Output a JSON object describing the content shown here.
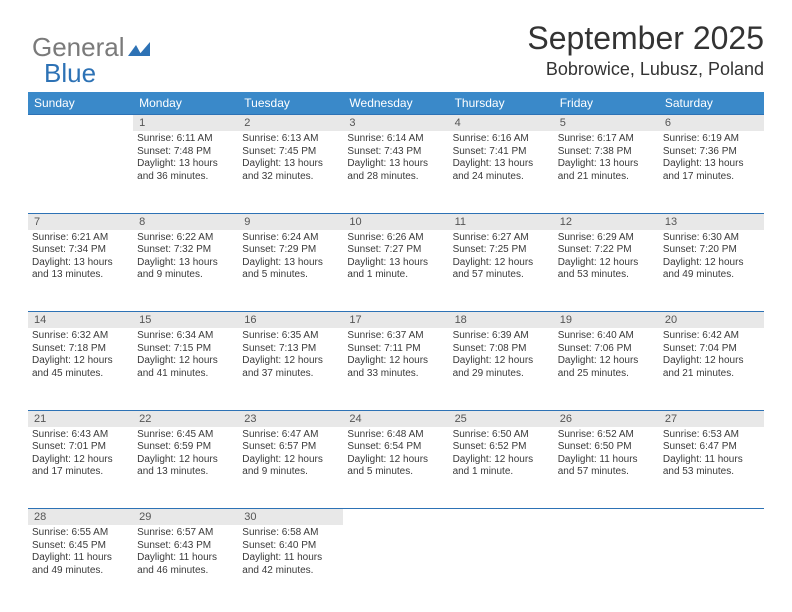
{
  "logo": {
    "part1": "General",
    "part2": "Blue"
  },
  "title": "September 2025",
  "location": "Bobrowice, Lubusz, Poland",
  "colors": {
    "header_bg": "#3a89c9",
    "daynum_bg": "#e8e8e8",
    "rule": "#2d72b5",
    "text": "#3a3a3a",
    "logo_gray": "#7a7a7a",
    "logo_blue": "#2d72b5"
  },
  "weekdays": [
    "Sunday",
    "Monday",
    "Tuesday",
    "Wednesday",
    "Thursday",
    "Friday",
    "Saturday"
  ],
  "weeks": [
    [
      null,
      {
        "d": "1",
        "sr": "Sunrise: 6:11 AM",
        "ss": "Sunset: 7:48 PM",
        "dl": "Daylight: 13 hours and 36 minutes."
      },
      {
        "d": "2",
        "sr": "Sunrise: 6:13 AM",
        "ss": "Sunset: 7:45 PM",
        "dl": "Daylight: 13 hours and 32 minutes."
      },
      {
        "d": "3",
        "sr": "Sunrise: 6:14 AM",
        "ss": "Sunset: 7:43 PM",
        "dl": "Daylight: 13 hours and 28 minutes."
      },
      {
        "d": "4",
        "sr": "Sunrise: 6:16 AM",
        "ss": "Sunset: 7:41 PM",
        "dl": "Daylight: 13 hours and 24 minutes."
      },
      {
        "d": "5",
        "sr": "Sunrise: 6:17 AM",
        "ss": "Sunset: 7:38 PM",
        "dl": "Daylight: 13 hours and 21 minutes."
      },
      {
        "d": "6",
        "sr": "Sunrise: 6:19 AM",
        "ss": "Sunset: 7:36 PM",
        "dl": "Daylight: 13 hours and 17 minutes."
      }
    ],
    [
      {
        "d": "7",
        "sr": "Sunrise: 6:21 AM",
        "ss": "Sunset: 7:34 PM",
        "dl": "Daylight: 13 hours and 13 minutes."
      },
      {
        "d": "8",
        "sr": "Sunrise: 6:22 AM",
        "ss": "Sunset: 7:32 PM",
        "dl": "Daylight: 13 hours and 9 minutes."
      },
      {
        "d": "9",
        "sr": "Sunrise: 6:24 AM",
        "ss": "Sunset: 7:29 PM",
        "dl": "Daylight: 13 hours and 5 minutes."
      },
      {
        "d": "10",
        "sr": "Sunrise: 6:26 AM",
        "ss": "Sunset: 7:27 PM",
        "dl": "Daylight: 13 hours and 1 minute."
      },
      {
        "d": "11",
        "sr": "Sunrise: 6:27 AM",
        "ss": "Sunset: 7:25 PM",
        "dl": "Daylight: 12 hours and 57 minutes."
      },
      {
        "d": "12",
        "sr": "Sunrise: 6:29 AM",
        "ss": "Sunset: 7:22 PM",
        "dl": "Daylight: 12 hours and 53 minutes."
      },
      {
        "d": "13",
        "sr": "Sunrise: 6:30 AM",
        "ss": "Sunset: 7:20 PM",
        "dl": "Daylight: 12 hours and 49 minutes."
      }
    ],
    [
      {
        "d": "14",
        "sr": "Sunrise: 6:32 AM",
        "ss": "Sunset: 7:18 PM",
        "dl": "Daylight: 12 hours and 45 minutes."
      },
      {
        "d": "15",
        "sr": "Sunrise: 6:34 AM",
        "ss": "Sunset: 7:15 PM",
        "dl": "Daylight: 12 hours and 41 minutes."
      },
      {
        "d": "16",
        "sr": "Sunrise: 6:35 AM",
        "ss": "Sunset: 7:13 PM",
        "dl": "Daylight: 12 hours and 37 minutes."
      },
      {
        "d": "17",
        "sr": "Sunrise: 6:37 AM",
        "ss": "Sunset: 7:11 PM",
        "dl": "Daylight: 12 hours and 33 minutes."
      },
      {
        "d": "18",
        "sr": "Sunrise: 6:39 AM",
        "ss": "Sunset: 7:08 PM",
        "dl": "Daylight: 12 hours and 29 minutes."
      },
      {
        "d": "19",
        "sr": "Sunrise: 6:40 AM",
        "ss": "Sunset: 7:06 PM",
        "dl": "Daylight: 12 hours and 25 minutes."
      },
      {
        "d": "20",
        "sr": "Sunrise: 6:42 AM",
        "ss": "Sunset: 7:04 PM",
        "dl": "Daylight: 12 hours and 21 minutes."
      }
    ],
    [
      {
        "d": "21",
        "sr": "Sunrise: 6:43 AM",
        "ss": "Sunset: 7:01 PM",
        "dl": "Daylight: 12 hours and 17 minutes."
      },
      {
        "d": "22",
        "sr": "Sunrise: 6:45 AM",
        "ss": "Sunset: 6:59 PM",
        "dl": "Daylight: 12 hours and 13 minutes."
      },
      {
        "d": "23",
        "sr": "Sunrise: 6:47 AM",
        "ss": "Sunset: 6:57 PM",
        "dl": "Daylight: 12 hours and 9 minutes."
      },
      {
        "d": "24",
        "sr": "Sunrise: 6:48 AM",
        "ss": "Sunset: 6:54 PM",
        "dl": "Daylight: 12 hours and 5 minutes."
      },
      {
        "d": "25",
        "sr": "Sunrise: 6:50 AM",
        "ss": "Sunset: 6:52 PM",
        "dl": "Daylight: 12 hours and 1 minute."
      },
      {
        "d": "26",
        "sr": "Sunrise: 6:52 AM",
        "ss": "Sunset: 6:50 PM",
        "dl": "Daylight: 11 hours and 57 minutes."
      },
      {
        "d": "27",
        "sr": "Sunrise: 6:53 AM",
        "ss": "Sunset: 6:47 PM",
        "dl": "Daylight: 11 hours and 53 minutes."
      }
    ],
    [
      {
        "d": "28",
        "sr": "Sunrise: 6:55 AM",
        "ss": "Sunset: 6:45 PM",
        "dl": "Daylight: 11 hours and 49 minutes."
      },
      {
        "d": "29",
        "sr": "Sunrise: 6:57 AM",
        "ss": "Sunset: 6:43 PM",
        "dl": "Daylight: 11 hours and 46 minutes."
      },
      {
        "d": "30",
        "sr": "Sunrise: 6:58 AM",
        "ss": "Sunset: 6:40 PM",
        "dl": "Daylight: 11 hours and 42 minutes."
      },
      null,
      null,
      null,
      null
    ]
  ]
}
